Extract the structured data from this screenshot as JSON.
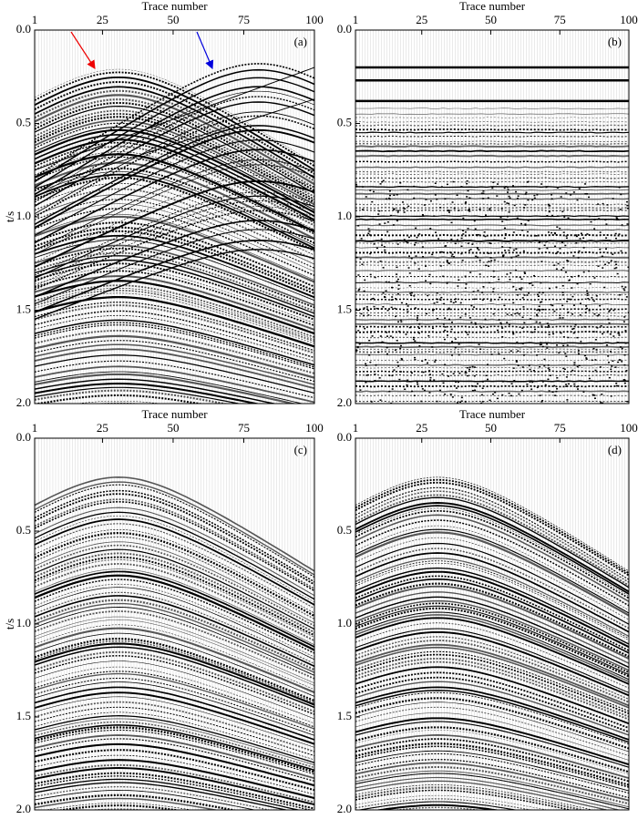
{
  "chart_data": [
    {
      "type": "seismic",
      "label": "(a)",
      "xlabel": "Trace number",
      "ylabel": "t/s",
      "xlim": [
        1,
        100
      ],
      "xticks": [
        1,
        25,
        50,
        75,
        100
      ],
      "ylim": [
        0,
        2
      ],
      "yticks": [
        {
          "value": 0,
          "label": "0.0"
        },
        {
          "value": 0.5,
          "label": "0.5"
        },
        {
          "value": 1,
          "label": "1.0"
        },
        {
          "value": 1.5,
          "label": "1.5"
        },
        {
          "value": 2,
          "label": "2.0"
        }
      ]
    },
    {
      "type": "seismic",
      "label": "(b)",
      "xlabel": "Trace number",
      "xlim": [
        1,
        100
      ],
      "xticks": [
        1,
        25,
        50,
        75,
        100
      ],
      "ylim": [
        0,
        2
      ],
      "yticks": [
        {
          "value": 0,
          "label": "0.0"
        },
        {
          "value": 0.5,
          "label": "0.5"
        },
        {
          "value": 1,
          "label": "1.0"
        },
        {
          "value": 1.5,
          "label": "1.5"
        },
        {
          "value": 2,
          "label": "2.0"
        }
      ]
    },
    {
      "type": "seismic",
      "label": "(c)",
      "xlabel": "Trace number",
      "ylabel": "t/s",
      "xlim": [
        1,
        100
      ],
      "xticks": [
        1,
        25,
        50,
        75,
        100
      ],
      "ylim": [
        0,
        2
      ],
      "yticks": [
        {
          "value": 0,
          "label": "0.0"
        },
        {
          "value": 0.5,
          "label": "0.5"
        },
        {
          "value": 1,
          "label": "1.0"
        },
        {
          "value": 1.5,
          "label": "1.5"
        },
        {
          "value": 2,
          "label": "2.0"
        }
      ]
    },
    {
      "type": "seismic",
      "label": "(d)",
      "xlabel": "Trace number",
      "xlim": [
        1,
        100
      ],
      "xticks": [
        1,
        25,
        50,
        75,
        100
      ],
      "ylim": [
        0,
        2
      ],
      "yticks": [
        {
          "value": 0,
          "label": "0.0"
        },
        {
          "value": 0.5,
          "label": "0.5"
        },
        {
          "value": 1,
          "label": "1.0"
        },
        {
          "value": 1.5,
          "label": "1.5"
        },
        {
          "value": 2,
          "label": "2.0"
        }
      ]
    }
  ]
}
